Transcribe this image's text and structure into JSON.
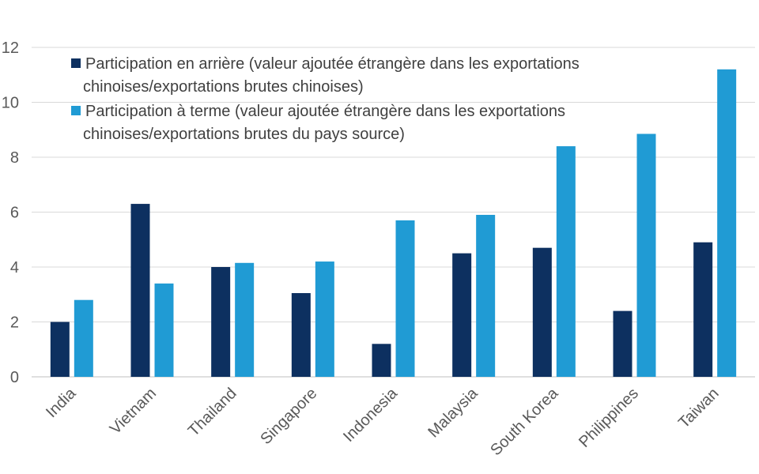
{
  "chart_data": {
    "type": "bar",
    "categories": [
      "India",
      "Vietnam",
      "Thailand",
      "Singapore",
      "Indonesia",
      "Malaysia",
      "South Korea",
      "Philippines",
      "Taiwan"
    ],
    "series": [
      {
        "name_lines": [
          "Participation en arrière (valeur ajoutée étrangère dans les exportations",
          "chinoises/exportations brutes chinoises)"
        ],
        "color": "#0d3060",
        "values": [
          2.0,
          6.3,
          4.0,
          3.05,
          1.2,
          4.5,
          4.7,
          2.4,
          4.9
        ]
      },
      {
        "name_lines": [
          "Participation à terme (valeur ajoutée étrangère dans les exportations",
          "chinoises/exportations brutes du pays source)"
        ],
        "color": "#209bd4",
        "values": [
          2.8,
          3.4,
          4.15,
          4.2,
          5.7,
          5.9,
          8.4,
          8.85,
          11.2
        ]
      }
    ],
    "ylim": [
      0,
      12
    ],
    "yticks": [
      0,
      2,
      4,
      6,
      8,
      10,
      12
    ],
    "grid": true,
    "legend_position": "top-left"
  }
}
